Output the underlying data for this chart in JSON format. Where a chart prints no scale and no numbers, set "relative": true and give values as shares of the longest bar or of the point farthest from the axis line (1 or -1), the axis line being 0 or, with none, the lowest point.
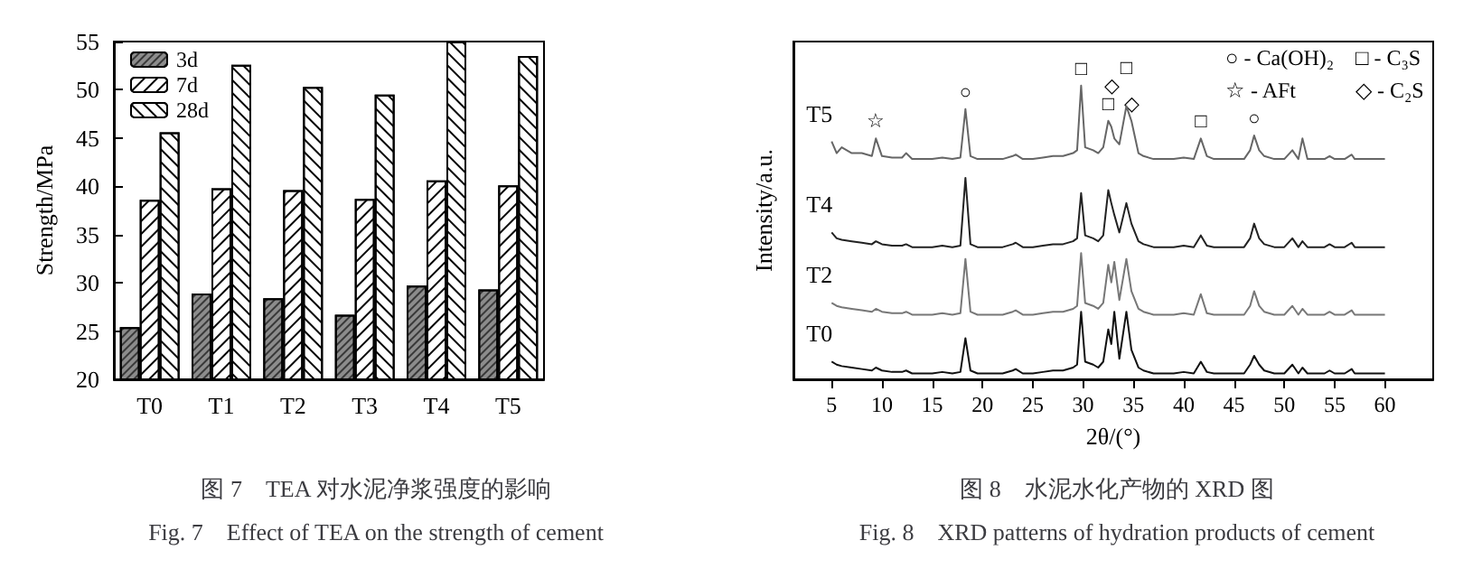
{
  "chart_data": [
    {
      "type": "bar",
      "title": "图 7　TEA 对水泥净浆强度的影响",
      "subtitle": "Fig. 7　Effect of TEA on the strength of cement",
      "ylabel": "Strength/MPa",
      "categories": [
        "T0",
        "T1",
        "T2",
        "T3",
        "T4",
        "T5"
      ],
      "series": [
        {
          "name": "3d",
          "color": "#8c8c8c",
          "values": [
            25.4,
            28.9,
            28.4,
            26.7,
            29.7,
            29.3
          ]
        },
        {
          "name": "7d",
          "color": "#ffffff",
          "values": [
            38.6,
            39.8,
            39.6,
            38.7,
            40.6,
            40.1
          ]
        },
        {
          "name": "28d",
          "color": "#ffffff",
          "values": [
            45.6,
            52.6,
            50.3,
            49.5,
            55,
            53.5
          ]
        }
      ],
      "ylim": [
        20,
        55
      ],
      "yticks": [
        20,
        25,
        30,
        35,
        40,
        45,
        50,
        55
      ],
      "grid": false,
      "legend": "top left"
    },
    {
      "type": "line",
      "title": "图 8　水泥水化产物的 XRD 图",
      "subtitle": "Fig. 8　XRD patterns of hydration products of cement",
      "xlabel": "2θ/(°)",
      "ylabel": "Intensity/a.u.",
      "relative": true,
      "x": [
        5,
        5.5,
        6,
        7,
        8,
        9,
        9.4,
        10,
        11,
        12,
        12.4,
        13,
        14,
        15,
        16,
        17,
        17.8,
        18.3,
        18.8,
        19.5,
        21,
        22,
        23,
        23.3,
        24,
        25,
        26,
        27,
        28,
        29,
        29.4,
        29.8,
        30.2,
        31,
        31.5,
        32,
        32.5,
        32.8,
        33.1,
        33.6,
        34.3,
        34.8,
        35.5,
        36,
        37,
        38,
        39,
        40,
        41,
        41.7,
        42.3,
        43,
        44,
        45,
        46,
        46.6,
        47,
        47.5,
        48,
        49,
        50,
        50.8,
        51.4,
        51.8,
        52.3,
        53,
        54,
        54.5,
        55,
        56,
        56.7,
        57,
        58,
        59,
        60
      ],
      "series": [
        {
          "name": "T5",
          "color": "#666666",
          "values": [
            0.81,
            0.77,
            0.79,
            0.77,
            0.77,
            0.76,
            0.82,
            0.76,
            0.755,
            0.755,
            0.77,
            0.75,
            0.75,
            0.75,
            0.755,
            0.75,
            0.755,
            0.92,
            0.76,
            0.75,
            0.75,
            0.75,
            0.76,
            0.765,
            0.75,
            0.75,
            0.755,
            0.76,
            0.76,
            0.77,
            0.78,
            1,
            0.79,
            0.78,
            0.77,
            0.79,
            0.88,
            0.86,
            0.82,
            0.8,
            0.93,
            0.88,
            0.77,
            0.76,
            0.75,
            0.75,
            0.75,
            0.755,
            0.75,
            0.82,
            0.76,
            0.75,
            0.75,
            0.75,
            0.75,
            0.78,
            0.83,
            0.78,
            0.76,
            0.75,
            0.75,
            0.78,
            0.75,
            0.82,
            0.75,
            0.75,
            0.75,
            0.76,
            0.75,
            0.75,
            0.765,
            0.75,
            0.75,
            0.75,
            0.75
          ]
        },
        {
          "name": "T4",
          "color": "#222222",
          "values": [
            0.5,
            0.48,
            0.475,
            0.47,
            0.465,
            0.46,
            0.47,
            0.46,
            0.455,
            0.455,
            0.46,
            0.45,
            0.45,
            0.45,
            0.455,
            0.45,
            0.455,
            0.686,
            0.46,
            0.45,
            0.45,
            0.45,
            0.46,
            0.465,
            0.45,
            0.45,
            0.455,
            0.46,
            0.46,
            0.47,
            0.48,
            0.634,
            0.49,
            0.48,
            0.47,
            0.49,
            0.644,
            0.6,
            0.56,
            0.5,
            0.6,
            0.53,
            0.47,
            0.46,
            0.45,
            0.45,
            0.45,
            0.455,
            0.45,
            0.49,
            0.455,
            0.45,
            0.45,
            0.45,
            0.45,
            0.48,
            0.53,
            0.48,
            0.46,
            0.45,
            0.45,
            0.48,
            0.45,
            0.47,
            0.45,
            0.45,
            0.45,
            0.46,
            0.45,
            0.45,
            0.465,
            0.45,
            0.45,
            0.45,
            0.45
          ]
        },
        {
          "name": "T2",
          "color": "#777777",
          "values": [
            0.26,
            0.25,
            0.245,
            0.24,
            0.235,
            0.23,
            0.24,
            0.23,
            0.225,
            0.225,
            0.23,
            0.22,
            0.22,
            0.22,
            0.225,
            0.22,
            0.225,
            0.41,
            0.23,
            0.22,
            0.22,
            0.22,
            0.23,
            0.235,
            0.22,
            0.22,
            0.225,
            0.23,
            0.23,
            0.24,
            0.25,
            0.43,
            0.26,
            0.25,
            0.24,
            0.26,
            0.39,
            0.33,
            0.4,
            0.27,
            0.41,
            0.3,
            0.24,
            0.23,
            0.22,
            0.22,
            0.22,
            0.225,
            0.22,
            0.29,
            0.225,
            0.22,
            0.22,
            0.22,
            0.22,
            0.25,
            0.3,
            0.25,
            0.23,
            0.22,
            0.22,
            0.25,
            0.22,
            0.24,
            0.22,
            0.22,
            0.22,
            0.23,
            0.22,
            0.22,
            0.235,
            0.22,
            0.22,
            0.22,
            0.22
          ]
        },
        {
          "name": "T0",
          "color": "#111111",
          "values": [
            0.06,
            0.05,
            0.045,
            0.04,
            0.035,
            0.03,
            0.04,
            0.03,
            0.025,
            0.025,
            0.03,
            0.02,
            0.02,
            0.02,
            0.025,
            0.02,
            0.025,
            0.14,
            0.03,
            0.02,
            0.02,
            0.02,
            0.03,
            0.035,
            0.02,
            0.02,
            0.025,
            0.03,
            0.03,
            0.04,
            0.05,
            0.23,
            0.06,
            0.05,
            0.04,
            0.06,
            0.17,
            0.12,
            0.23,
            0.07,
            0.23,
            0.1,
            0.04,
            0.03,
            0.02,
            0.02,
            0.02,
            0.025,
            0.02,
            0.06,
            0.025,
            0.02,
            0.02,
            0.02,
            0.02,
            0.05,
            0.08,
            0.05,
            0.03,
            0.02,
            0.02,
            0.05,
            0.02,
            0.04,
            0.02,
            0.02,
            0.02,
            0.03,
            0.02,
            0.02,
            0.035,
            0.02,
            0.02,
            0.02,
            0.02
          ]
        }
      ],
      "annotations": [
        "○ - Ca(OH)₂",
        "□ - C₃S",
        "☆ - AFt",
        "◇ - C₂S",
        {
          "text": "○",
          "x": 18.3,
          "y": 0.92
        },
        {
          "text": "□",
          "x": 29.8,
          "y": 1
        },
        {
          "text": "□",
          "x": 32.5,
          "y": 0.88
        },
        {
          "text": "◇",
          "x": 32.8,
          "y": 0.86
        },
        {
          "text": "□",
          "x": 34.3,
          "y": 0.93
        },
        {
          "text": "◇",
          "x": 34.8,
          "y": 0.88
        },
        {
          "text": "□",
          "x": 41.7,
          "y": 0.82
        },
        {
          "text": "○",
          "x": 47,
          "y": 0.83
        },
        {
          "text": "☆",
          "x": 9.4,
          "y": 0.82
        }
      ],
      "xlim": [
        1.2,
        64.8
      ],
      "xticks": [
        5,
        10,
        15,
        20,
        25,
        30,
        35,
        40,
        45,
        50,
        55,
        60
      ],
      "grid": false,
      "legend": false,
      "marker": "none",
      "line_style": "solid"
    }
  ]
}
